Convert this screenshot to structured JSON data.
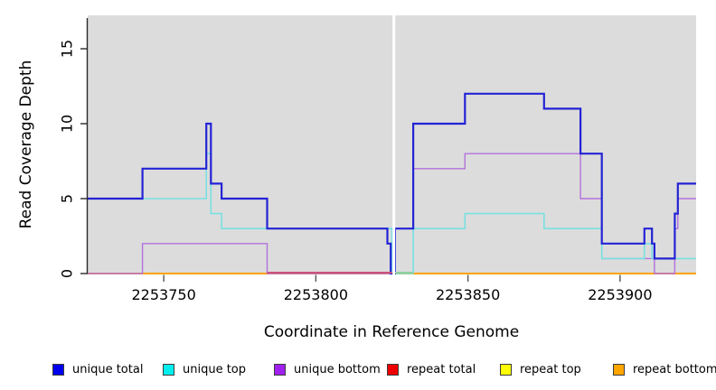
{
  "chart_data": {
    "type": "line",
    "step": true,
    "title": "",
    "xlabel": "Coordinate in Reference Genome",
    "ylabel": "Read Coverage Depth",
    "xlim": [
      2253725,
      2253925
    ],
    "ylim": [
      0,
      17.2
    ],
    "x_tick_values": [
      2253750,
      2253800,
      2253850,
      2253900
    ],
    "y_tick_values": [
      0,
      5,
      10,
      15
    ],
    "plot_bg": "#dcdcdc",
    "grid": false,
    "legend_position": "bottom",
    "axis_color": "#2a2a2a",
    "tick_color": "#555555",
    "gap_band": {
      "x_start": 2253825.2,
      "x_end": 2253826.1,
      "color": "#ffffff"
    },
    "series": [
      {
        "name": "repeat total",
        "line_color": "#ee0000",
        "legend_color": "#ee0000",
        "line_width": 1.4,
        "points": [
          [
            2253725,
            0
          ]
        ]
      },
      {
        "name": "repeat top",
        "line_color": "#ffff00",
        "legend_color": "#ffff00",
        "line_width": 1.4,
        "points": [
          [
            2253725,
            0
          ]
        ]
      },
      {
        "name": "repeat bottom",
        "line_color": "#ffa500",
        "legend_color": "#ffa500",
        "line_width": 2,
        "points": [
          [
            2253725,
            0
          ]
        ]
      },
      {
        "name": "unique bottom",
        "line_color": "#b272dc",
        "legend_color": "#a020f0",
        "line_width": 1.4,
        "points": [
          [
            2253725,
            0
          ],
          [
            2253743,
            2
          ],
          [
            2253784,
            0
          ],
          [
            2253826,
            3
          ],
          [
            2253832,
            7
          ],
          [
            2253849,
            8
          ],
          [
            2253887,
            5
          ],
          [
            2253894,
            1
          ],
          [
            2253911.3,
            0
          ],
          [
            2253918,
            3
          ],
          [
            2253919,
            5
          ]
        ]
      },
      {
        "name": "unique top",
        "line_color": "#79e0e0",
        "legend_color": "#00eeee",
        "line_width": 1.6,
        "points": [
          [
            2253725,
            5
          ],
          [
            2253764,
            8
          ],
          [
            2253765.5,
            4
          ],
          [
            2253769,
            3
          ],
          [
            2253825,
            0
          ],
          [
            2253832,
            3
          ],
          [
            2253849,
            4
          ],
          [
            2253875,
            3
          ],
          [
            2253894,
            1
          ],
          [
            2253908,
            2
          ],
          [
            2253910.5,
            1
          ]
        ]
      },
      {
        "name": "unique total",
        "line_color": "#2323d5",
        "legend_color": "#0000ee",
        "line_width": 2.2,
        "points": [
          [
            2253725,
            5
          ],
          [
            2253743,
            7
          ],
          [
            2253764,
            10
          ],
          [
            2253765.5,
            6
          ],
          [
            2253769,
            5
          ],
          [
            2253784,
            3
          ],
          [
            2253823.5,
            2
          ],
          [
            2253824.6,
            0
          ],
          [
            2253826,
            3
          ],
          [
            2253832,
            10
          ],
          [
            2253849,
            12
          ],
          [
            2253875,
            11
          ],
          [
            2253887,
            8
          ],
          [
            2253894,
            2
          ],
          [
            2253908,
            3
          ],
          [
            2253910.5,
            2
          ],
          [
            2253911.3,
            1
          ],
          [
            2253918,
            4
          ],
          [
            2253919,
            6
          ]
        ]
      }
    ],
    "legend_order": [
      "unique total",
      "unique top",
      "unique bottom",
      "repeat total",
      "repeat top",
      "repeat bottom"
    ],
    "zero_overlay_segments": [
      {
        "x_start": 2253784,
        "x_end": 2253825.2,
        "color": "#c9547e"
      },
      {
        "x_start": 2253826.1,
        "x_end": 2253832,
        "color": "#8fd0a0"
      }
    ]
  }
}
